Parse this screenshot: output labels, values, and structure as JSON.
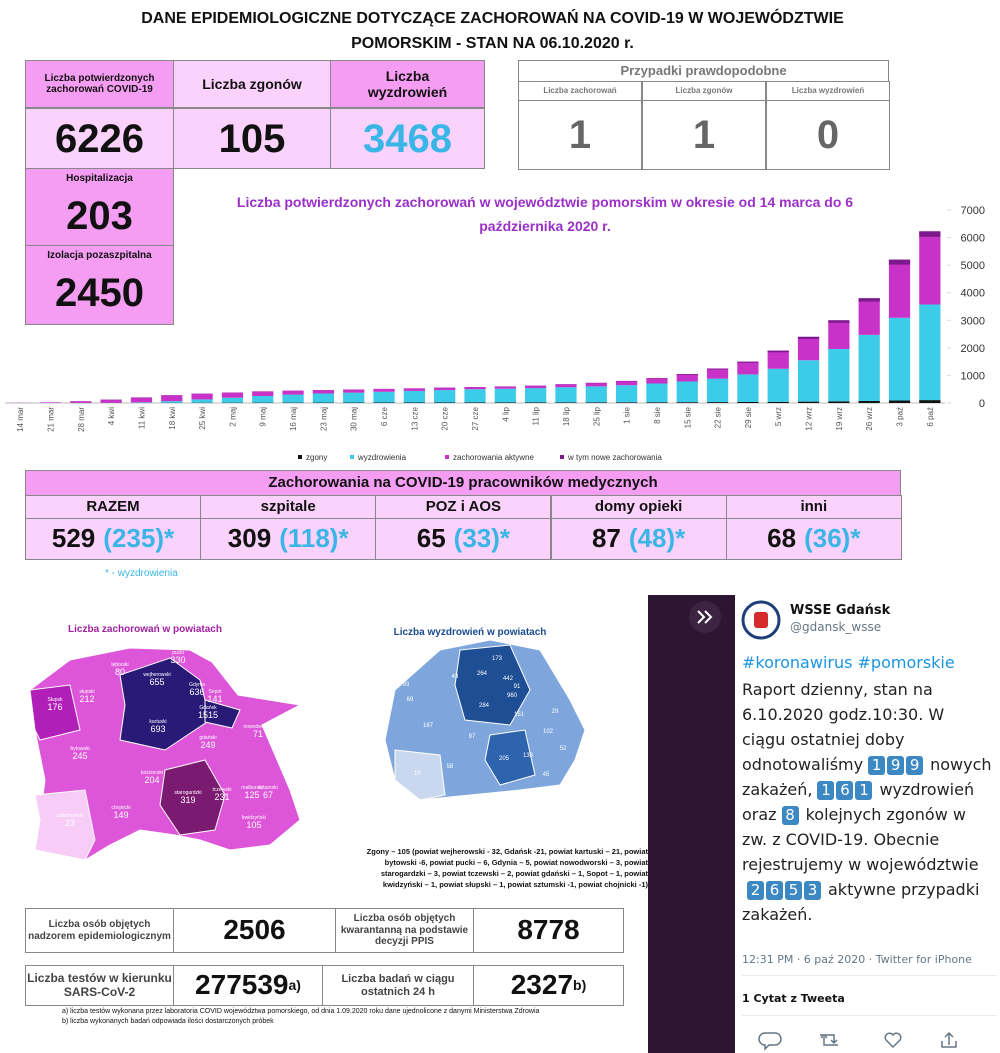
{
  "header": {
    "title_line1": "DANE EPIDEMIOLOGICZNE DOTYCZĄCE ZACHOROWAŃ NA COVID-19 W WOJEWÓDZTWIE",
    "title_line2": "POMORSKIM - STAN NA 06.10.2020 r."
  },
  "summary": {
    "confirmed": {
      "label": "Liczba potwierdzonych zachorowań COVID-19",
      "value": 6226
    },
    "deaths": {
      "label": "Liczba zgonów",
      "value": 105
    },
    "recovered": {
      "label": "Liczba wyzdrowień",
      "value": 3468
    },
    "hospitalized": {
      "label": "Hospitalizacja",
      "value": 203
    },
    "home_isolation": {
      "label": "Izolacja pozaszpitalna",
      "value": 2450
    }
  },
  "probable": {
    "title": "Przypadki prawdopodobne",
    "columns": [
      {
        "label": "Liczba zachorowań",
        "value": 1
      },
      {
        "label": "Liczba zgonów",
        "value": 1
      },
      {
        "label": "Liczba wyzdrowień",
        "value": 0
      }
    ]
  },
  "chart_data": {
    "type": "bar",
    "stacked": true,
    "title": "Liczba potwierdzonych zachorowań w województwie pomorskim w okresie od 14 marca do 6 października 2020 r.",
    "categories": [
      "14 mar",
      "21 mar",
      "28 mar",
      "4 kwi",
      "11 kwi",
      "18 kwi",
      "25 kwi",
      "2 maj",
      "9 maj",
      "16 maj",
      "23 maj",
      "30 maj",
      "6 cze",
      "13 cze",
      "20 cze",
      "27 cze",
      "4 lip",
      "11 lip",
      "18 lip",
      "25 lip",
      "1 sie",
      "8 sie",
      "15 sie",
      "22 sie",
      "29 sie",
      "5 wrz",
      "12 wrz",
      "19 wrz",
      "26 wrz",
      "3 paź",
      "6 paź"
    ],
    "series": [
      {
        "name": "zgony",
        "color": "#111111",
        "values": [
          0,
          0,
          1,
          3,
          5,
          8,
          10,
          12,
          13,
          14,
          15,
          16,
          17,
          18,
          19,
          20,
          20,
          21,
          22,
          23,
          25,
          27,
          30,
          33,
          37,
          42,
          50,
          60,
          72,
          90,
          105
        ]
      },
      {
        "name": "wyzdrowienia",
        "color": "#3ccbe8",
        "values": [
          0,
          0,
          0,
          5,
          20,
          60,
          120,
          180,
          240,
          290,
          330,
          360,
          390,
          420,
          450,
          480,
          500,
          520,
          550,
          580,
          620,
          680,
          750,
          850,
          1000,
          1200,
          1500,
          1900,
          2400,
          3000,
          3468
        ]
      },
      {
        "name": "zachorowania aktywne",
        "color": "#c832c8",
        "values": [
          5,
          20,
          59,
          112,
          175,
          212,
          210,
          188,
          167,
          146,
          125,
          114,
          103,
          92,
          91,
          80,
          80,
          89,
          108,
          127,
          155,
          193,
          270,
          367,
          463,
          658,
          850,
          1040,
          1328,
          2110,
          2653
        ]
      },
      {
        "name": "w tym nowe zachorowania",
        "color": "#7a1a8c",
        "overlay": true,
        "values": [
          2,
          5,
          8,
          10,
          12,
          9,
          6,
          5,
          4,
          3,
          3,
          3,
          3,
          4,
          5,
          4,
          4,
          6,
          8,
          9,
          12,
          15,
          25,
          30,
          38,
          60,
          75,
          90,
          120,
          180,
          199
        ]
      }
    ],
    "ylim": [
      0,
      7000
    ],
    "yticks": [
      0,
      1000,
      2000,
      3000,
      4000,
      5000,
      6000,
      7000
    ],
    "y_axis_side": "right",
    "legend": "bottom",
    "grid": false
  },
  "medical": {
    "title": "Zachorowania na COVID-19 pracowników medycznych",
    "columns": [
      {
        "label": "RAZEM",
        "cases": 529,
        "recovered": "(235)*"
      },
      {
        "label": "szpitale",
        "cases": 309,
        "recovered": "(118)*"
      },
      {
        "label": "POZ i AOS",
        "cases": 65,
        "recovered": "(33)*"
      },
      {
        "label": "domy opieki",
        "cases": 87,
        "recovered": "(48)*"
      },
      {
        "label": "inni",
        "cases": 68,
        "recovered": "(36)*"
      }
    ],
    "note": "* - wyzdrowienia"
  },
  "maps": {
    "cases": {
      "title": "Liczba zachorowań w powiatach",
      "regions": [
        {
          "name": "pucki",
          "value": 330
        },
        {
          "name": "lęborski",
          "value": 80
        },
        {
          "name": "wejherowski",
          "value": 655
        },
        {
          "name": "Gdynia",
          "value": 636
        },
        {
          "name": "Sopot",
          "value": 141
        },
        {
          "name": "słupski",
          "value": 212
        },
        {
          "name": "Słupsk",
          "value": 176
        },
        {
          "name": "Gdańsk",
          "value": 1515
        },
        {
          "name": "kartuski",
          "value": 693
        },
        {
          "name": "gdański",
          "value": 249
        },
        {
          "name": "nowodworski",
          "value": 71
        },
        {
          "name": "bytowski",
          "value": 245
        },
        {
          "name": "malborski",
          "value": 125
        },
        {
          "name": "kościerski",
          "value": 204
        },
        {
          "name": "starogardzki",
          "value": 319
        },
        {
          "name": "tczewski",
          "value": 231
        },
        {
          "name": "sztumski",
          "value": 67
        },
        {
          "name": "chojnicki",
          "value": 149
        },
        {
          "name": "kwidzyński",
          "value": 105
        },
        {
          "name": "człuchowski",
          "value": 23
        }
      ]
    },
    "recoveries": {
      "title": "Liczba wyzdrowień w powiatach",
      "values": [
        173,
        264,
        442,
        91,
        960,
        43,
        93,
        69,
        284,
        151,
        29,
        167,
        97,
        102,
        52,
        205,
        133,
        10,
        58,
        45
      ]
    },
    "deaths_note": "Zgony – 105 (powiat wejherowski - 32, Gdańsk -21, powiat kartuski – 21, powiat bytowski -6, powiat pucki – 6, Gdynia – 5, powiat nowodworski – 3, powiat starogardzki – 3, powiat tczewski – 2, powiat gdański – 1, Sopot – 1, powiat kwidzyński – 1, powiat słupski – 1, powiat sztumski -1, powiat chojnicki -1)"
  },
  "bottom_table": {
    "supervision": {
      "label": "Liczba osób objętych nadzorem epidemiologicznym",
      "value": 2506
    },
    "quarantine": {
      "label": "Liczba osób objętych kwarantanną na podstawie decyzji PPIS",
      "value": 8778
    },
    "tests": {
      "label": "Liczba testów w kierunku SARS-CoV-2",
      "value": 277539,
      "mark": "a)"
    },
    "tests_24h": {
      "label": "Liczba badań w ciągu ostatnich 24 h",
      "value": 2327,
      "mark": "b)"
    },
    "footnotes": [
      "a) liczba testów wykonana przez laboratoria COVID województwa pomorskiego, od dnia 1.09.2020 roku dane ujednolicone z danymi Ministerstwa Zdrowia",
      "b) liczba wykonanych badań odpowiada ilości dostarczonych próbek"
    ]
  },
  "tweet": {
    "author": "WSSE Gdańsk",
    "handle": "@gdansk_wsse",
    "hashtags": "#koronawirus #pomorskie",
    "body": [
      "Raport dzienny, stan na 6.10.2020 godz.10:30. W ciągu ostatniej doby odnotowaliśmy",
      199,
      "nowych zakażeń,",
      161,
      "wyzdrowień oraz",
      8,
      "kolejnych zgonów w zw. z COVID-19. Obecnie rejestrujemy w województwie",
      2653,
      "aktywne przypadki zakażeń."
    ],
    "meta": "12:31 PM · 6 paź 2020 · Twitter for iPhone",
    "quotes": "1 Cytat z Tweeta"
  }
}
